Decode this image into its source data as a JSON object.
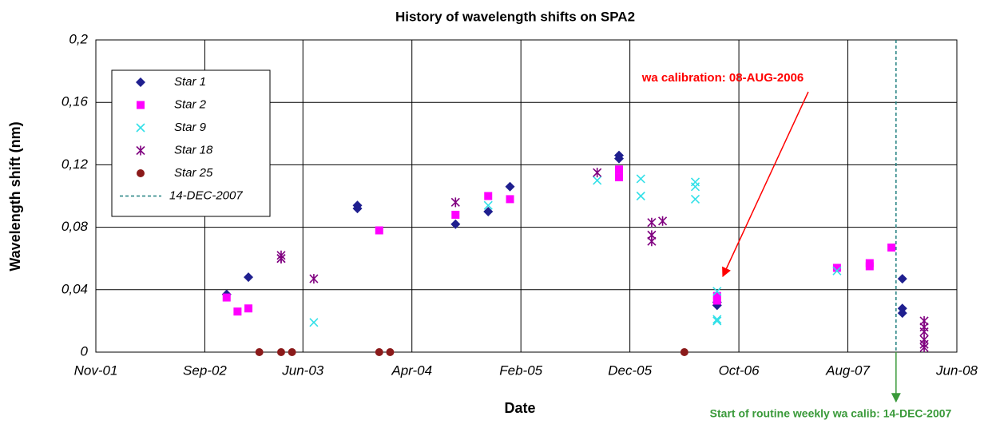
{
  "chart_data": {
    "type": "scatter",
    "title": "History of wavelength shifts on SPA2",
    "xlabel": "Date",
    "ylabel": "Wavelength shift (nm)",
    "xlim": [
      "2001-11",
      "2008-06"
    ],
    "xticks": [
      {
        "value": "2001-11",
        "label": "Nov-01"
      },
      {
        "value": "2002-09",
        "label": "Sep-02"
      },
      {
        "value": "2003-06",
        "label": "Jun-03"
      },
      {
        "value": "2004-04",
        "label": "Apr-04"
      },
      {
        "value": "2005-02",
        "label": "Feb-05"
      },
      {
        "value": "2005-12",
        "label": "Dec-05"
      },
      {
        "value": "2006-10",
        "label": "Oct-06"
      },
      {
        "value": "2007-08",
        "label": "Aug-07"
      },
      {
        "value": "2008-06",
        "label": "Jun-08"
      }
    ],
    "ylim": [
      0,
      0.2
    ],
    "yticks": [
      0,
      {
        "value": 0.04,
        "label": "0,04"
      },
      {
        "value": 0.08,
        "label": "0,08"
      },
      {
        "value": 0.12,
        "label": "0,12"
      },
      {
        "value": 0.16,
        "label": "0,16"
      },
      {
        "value": 0.2,
        "label": "0,2"
      }
    ],
    "grid": true,
    "legend": "upper left",
    "series": [
      {
        "name": "Star 1",
        "color": "#1f1f8f",
        "marker": "diamond",
        "x": [
          "2002-11",
          "2003-01",
          "2003-11",
          "2003-11",
          "2004-08",
          "2004-11",
          "2005-01",
          "2005-11",
          "2005-11",
          "2006-08",
          "2006-08",
          "2008-01",
          "2008-01",
          "2008-01"
        ],
        "values": [
          0.037,
          0.048,
          0.092,
          0.094,
          0.082,
          0.09,
          0.106,
          0.124,
          0.126,
          0.03,
          0.032,
          0.047,
          0.025,
          0.028
        ]
      },
      {
        "name": "Star 2",
        "color": "#ff00ff",
        "marker": "square",
        "x": [
          "2002-11",
          "2002-12",
          "2003-01",
          "2004-01",
          "2004-08",
          "2004-11",
          "2005-01",
          "2005-11",
          "2005-11",
          "2006-08",
          "2006-08",
          "2007-07",
          "2007-10",
          "2007-10",
          "2007-12"
        ],
        "values": [
          0.035,
          0.026,
          0.028,
          0.078,
          0.088,
          0.1,
          0.098,
          0.112,
          0.117,
          0.033,
          0.036,
          0.054,
          0.055,
          0.057,
          0.067
        ]
      },
      {
        "name": "Star 9",
        "color": "#33e0e8",
        "marker": "x",
        "x": [
          "2003-07",
          "2004-11",
          "2005-09",
          "2006-01",
          "2006-01",
          "2006-06",
          "2006-06",
          "2006-06",
          "2006-08",
          "2006-08",
          "2006-08",
          "2007-07"
        ],
        "values": [
          0.019,
          0.094,
          0.11,
          0.111,
          0.1,
          0.109,
          0.106,
          0.098,
          0.039,
          0.021,
          0.02,
          0.052
        ]
      },
      {
        "name": "Star 18",
        "color": "#800080",
        "marker": "asterisk",
        "x": [
          "2003-04",
          "2003-04",
          "2003-04",
          "2003-07",
          "2004-08",
          "2005-09",
          "2006-02",
          "2006-02",
          "2006-02",
          "2006-03",
          "2008-03",
          "2008-03",
          "2008-03",
          "2008-03",
          "2008-03",
          "2008-03"
        ],
        "values": [
          0.06,
          0.062,
          0.06,
          0.047,
          0.096,
          0.115,
          0.083,
          0.075,
          0.071,
          0.084,
          0.02,
          0.016,
          0.013,
          0.008,
          0.005,
          0.003
        ]
      },
      {
        "name": "Star 25",
        "color": "#8b1a1a",
        "marker": "circle",
        "x": [
          "2003-02",
          "2003-04",
          "2003-05",
          "2004-01",
          "2004-02",
          "2006-05"
        ],
        "values": [
          0,
          0,
          0,
          0,
          0,
          0
        ]
      }
    ],
    "vlines": [
      {
        "name": "14-DEC-2007",
        "x": "2007-12-14",
        "color": "#1f7f7f"
      }
    ],
    "annotations": [
      {
        "text": "wa calibration: 08-AUG-2006",
        "color": "#ff0000"
      },
      {
        "text": "Start of routine weekly wa calib: 14-DEC-2007",
        "color": "#3a9a3a"
      }
    ]
  }
}
